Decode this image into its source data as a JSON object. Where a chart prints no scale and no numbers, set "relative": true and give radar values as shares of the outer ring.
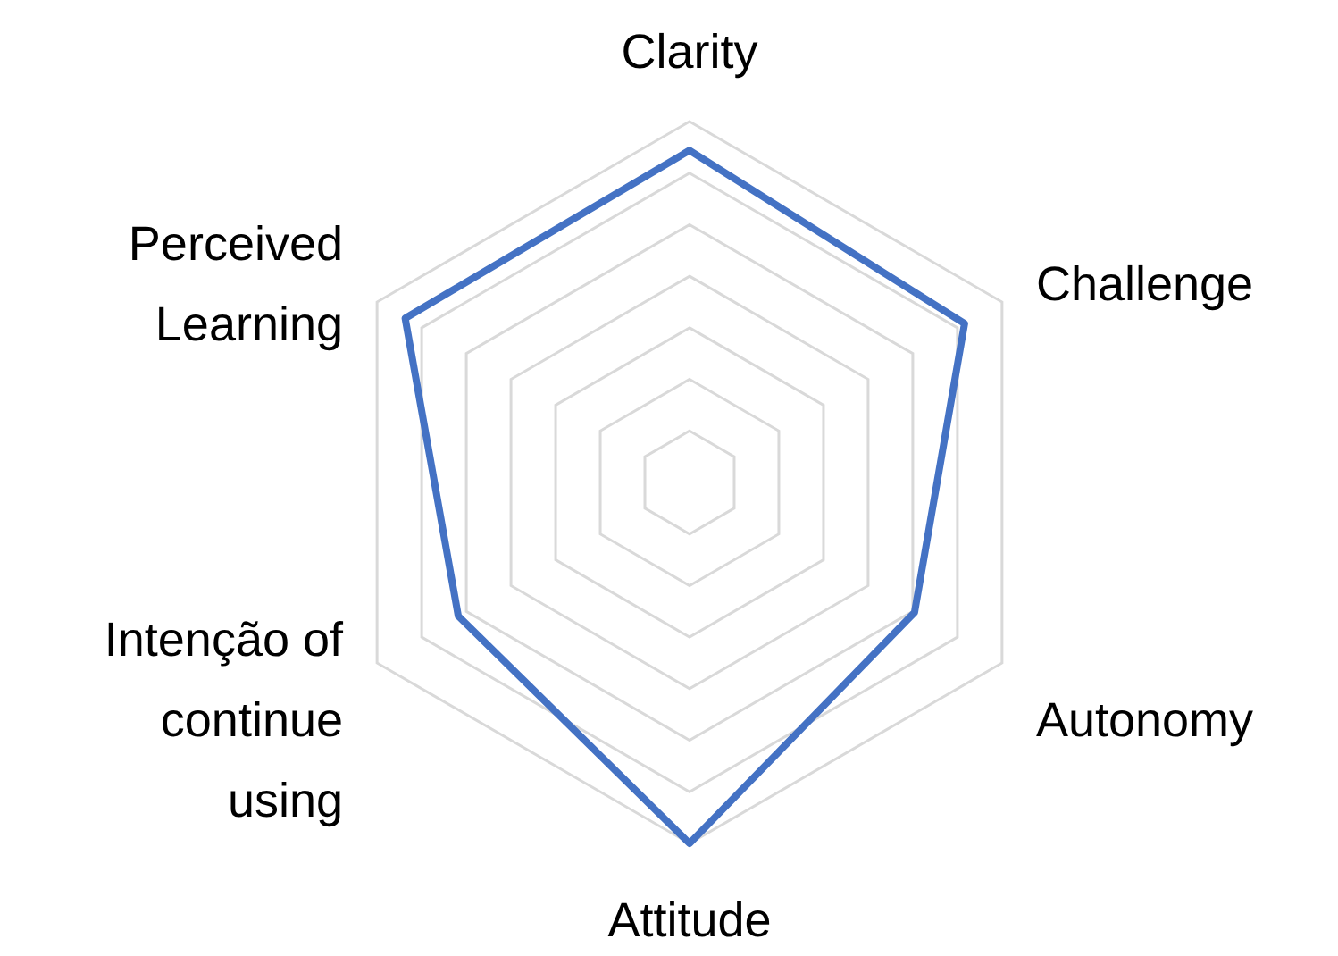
{
  "chart_data": {
    "type": "radar",
    "relative": true,
    "grid": true,
    "categories": [
      "Clarity",
      "Challenge",
      "Autonomy",
      "Attitude",
      "Intenção of\ncontinue\nusing",
      "Perceived\nLearning"
    ],
    "series": [
      {
        "color": "#4472c4",
        "values": [
          0.92,
          0.88,
          0.72,
          1,
          0.74,
          0.91
        ]
      }
    ]
  }
}
